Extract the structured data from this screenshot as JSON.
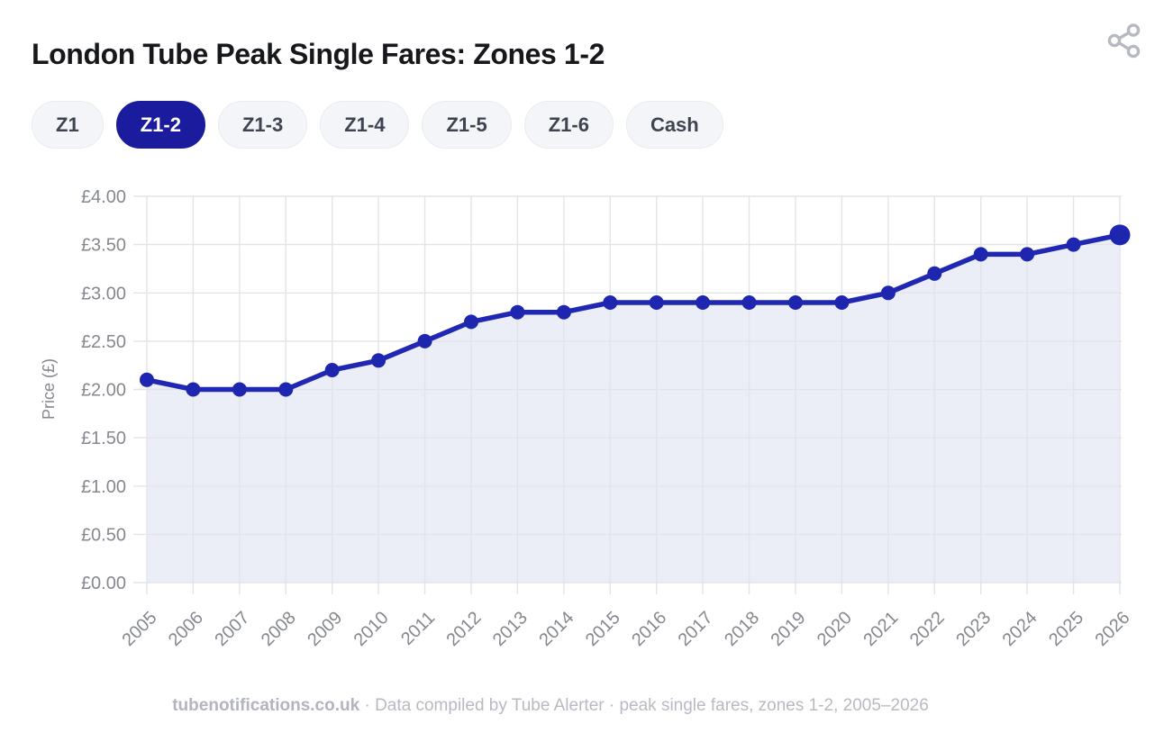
{
  "header": {
    "title": "London Tube Peak Single Fares: Zones 1-2"
  },
  "icons": {
    "share": "share-nodes-icon"
  },
  "tabs": [
    {
      "label": "Z1",
      "active": false
    },
    {
      "label": "Z1-2",
      "active": true
    },
    {
      "label": "Z1-3",
      "active": false
    },
    {
      "label": "Z1-4",
      "active": false
    },
    {
      "label": "Z1-5",
      "active": false
    },
    {
      "label": "Z1-6",
      "active": false
    },
    {
      "label": "Cash",
      "active": false
    }
  ],
  "chart_data": {
    "type": "area",
    "title": "London Tube Peak Single Fares: Zones 1-2",
    "x": [
      2005,
      2006,
      2007,
      2008,
      2009,
      2010,
      2011,
      2012,
      2013,
      2014,
      2015,
      2016,
      2017,
      2018,
      2019,
      2020,
      2021,
      2022,
      2023,
      2024,
      2025,
      2026
    ],
    "series": [
      {
        "name": "Zones 1-2 peak single fare",
        "values": [
          2.1,
          2.0,
          2.0,
          2.0,
          2.2,
          2.3,
          2.5,
          2.7,
          2.8,
          2.8,
          2.9,
          2.9,
          2.9,
          2.9,
          2.9,
          2.9,
          3.0,
          3.2,
          3.4,
          3.4,
          3.5,
          3.6
        ]
      }
    ],
    "xlabel": "",
    "ylabel": "Price (£)",
    "ylim": [
      0,
      4
    ],
    "y_ticks": [
      {
        "label": "£0.00",
        "value": 0.0
      },
      {
        "label": "£0.50",
        "value": 0.5
      },
      {
        "label": "£1.00",
        "value": 1.0
      },
      {
        "label": "£1.50",
        "value": 1.5
      },
      {
        "label": "£2.00",
        "value": 2.0
      },
      {
        "label": "£2.50",
        "value": 2.5
      },
      {
        "label": "£3.00",
        "value": 3.0
      },
      {
        "label": "£3.50",
        "value": 3.5
      },
      {
        "label": "£4.00",
        "value": 4.0
      }
    ],
    "x_tick_rotation": -45,
    "grid": true,
    "legend": false,
    "emphasize_last_point": true,
    "colors": {
      "line": "#2028b3",
      "point": "#1e26b0",
      "fill": "#eceef7",
      "grid": "#e3e4ea",
      "axis_text": "#85888f"
    }
  },
  "footer": {
    "site": "tubenotifications.co.uk",
    "rest": " · Data compiled by Tube Alerter · peak single fares, zones 1-2, 2005–2026"
  }
}
